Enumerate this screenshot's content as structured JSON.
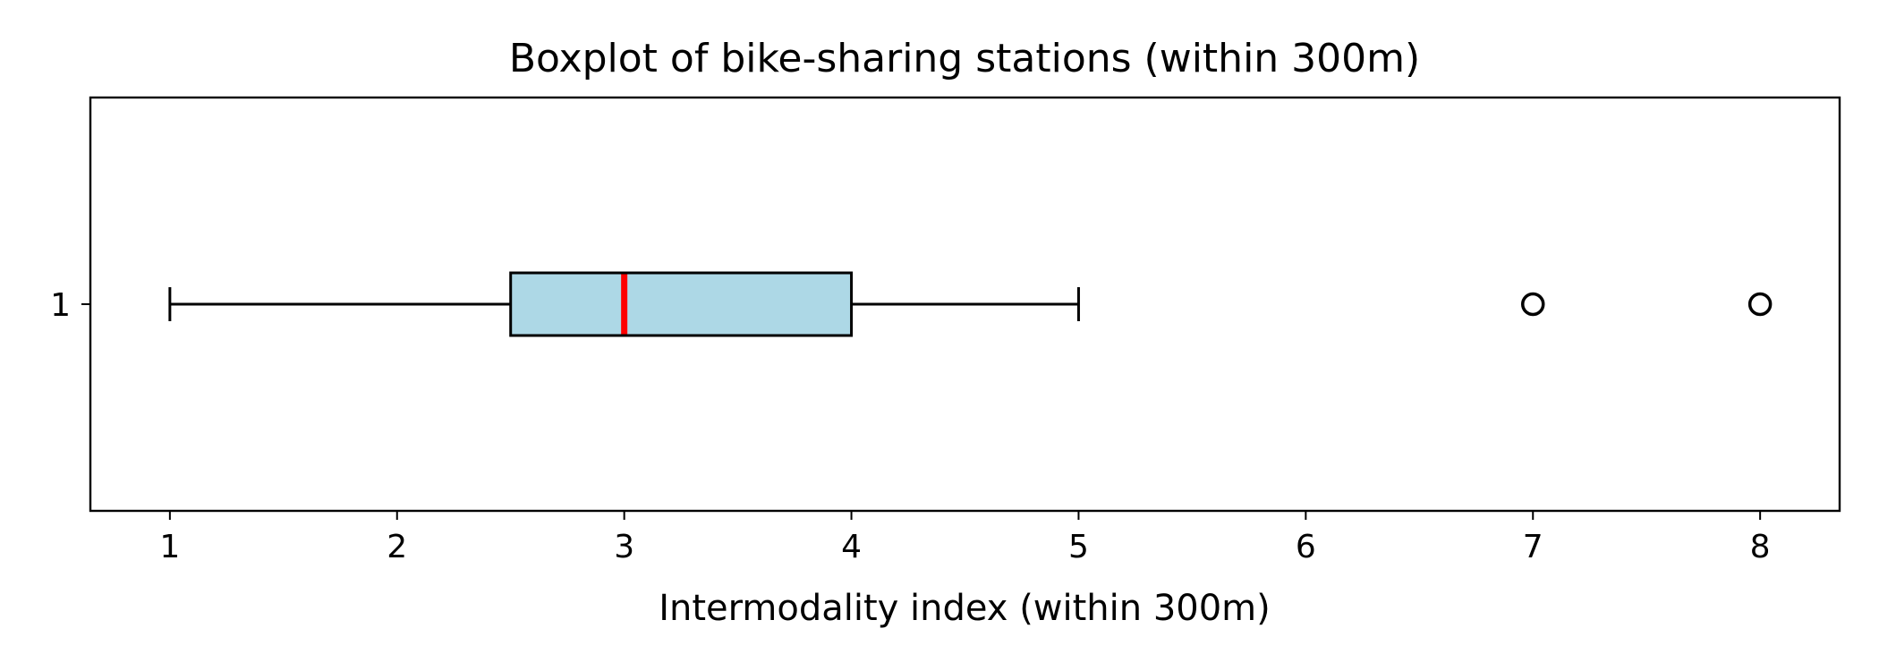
{
  "chart_data": {
    "type": "boxplot",
    "orientation": "horizontal",
    "title": "Boxplot of bike-sharing stations (within 300m)",
    "xlabel": "Intermodality index (within 300m)",
    "ylabel": "",
    "xlim": [
      0.65,
      8.35
    ],
    "x_ticks": [
      1,
      2,
      3,
      4,
      5,
      6,
      7,
      8
    ],
    "y_ticks": [
      "1"
    ],
    "grid": false,
    "boxes": [
      {
        "category": "1",
        "whisker_low": 1,
        "q1": 2.5,
        "median": 3,
        "q3": 4,
        "whisker_high": 5,
        "outliers": [
          7,
          8
        ]
      }
    ],
    "colors": {
      "box_fill": "#add8e6",
      "median": "#ff0000",
      "stroke": "#000000"
    }
  }
}
